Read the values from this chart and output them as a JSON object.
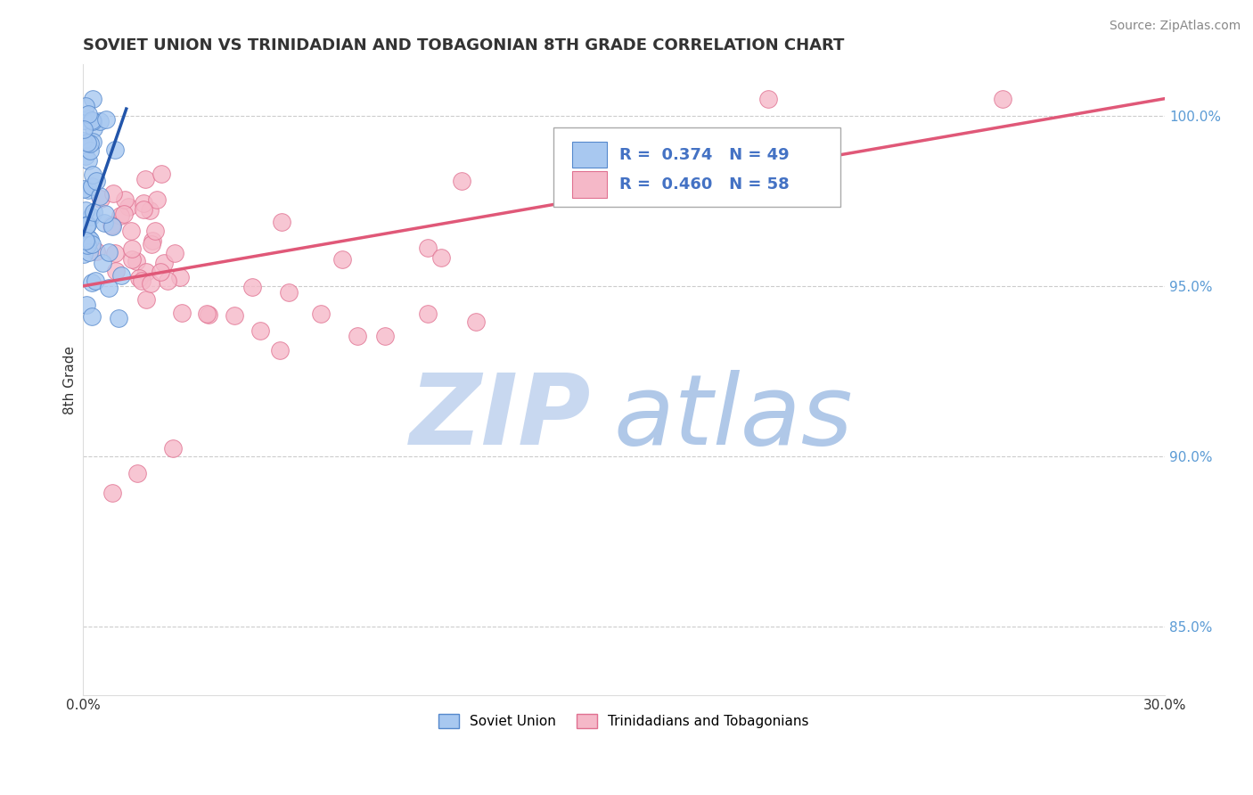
{
  "title": "SOVIET UNION VS TRINIDADIAN AND TOBAGONIAN 8TH GRADE CORRELATION CHART",
  "source": "Source: ZipAtlas.com",
  "ylabel": "8th Grade",
  "xlim": [
    0.0,
    30.0
  ],
  "ylim": [
    83.0,
    101.5
  ],
  "xticks": [
    0.0,
    5.0,
    10.0,
    15.0,
    20.0,
    25.0,
    30.0
  ],
  "xtick_labels": [
    "0.0%",
    "",
    "",
    "",
    "",
    "",
    "30.0%"
  ],
  "ytick_vals": [
    85.0,
    90.0,
    95.0,
    100.0
  ],
  "ytick_labels": [
    "85.0%",
    "90.0%",
    "95.0%",
    "100.0%"
  ],
  "color_blue": "#A8C8F0",
  "color_blue_edge": "#5588CC",
  "color_pink": "#F5B8C8",
  "color_pink_edge": "#E07090",
  "color_trendline_blue": "#2255AA",
  "color_trendline_pink": "#E05878",
  "background_color": "#FFFFFF",
  "grid_color": "#CCCCCC",
  "watermark_zip_color": "#C8D8F0",
  "watermark_atlas_color": "#B0C8E8",
  "yaxis_label_color": "#5B9BD5",
  "title_color": "#333333",
  "source_color": "#888888"
}
